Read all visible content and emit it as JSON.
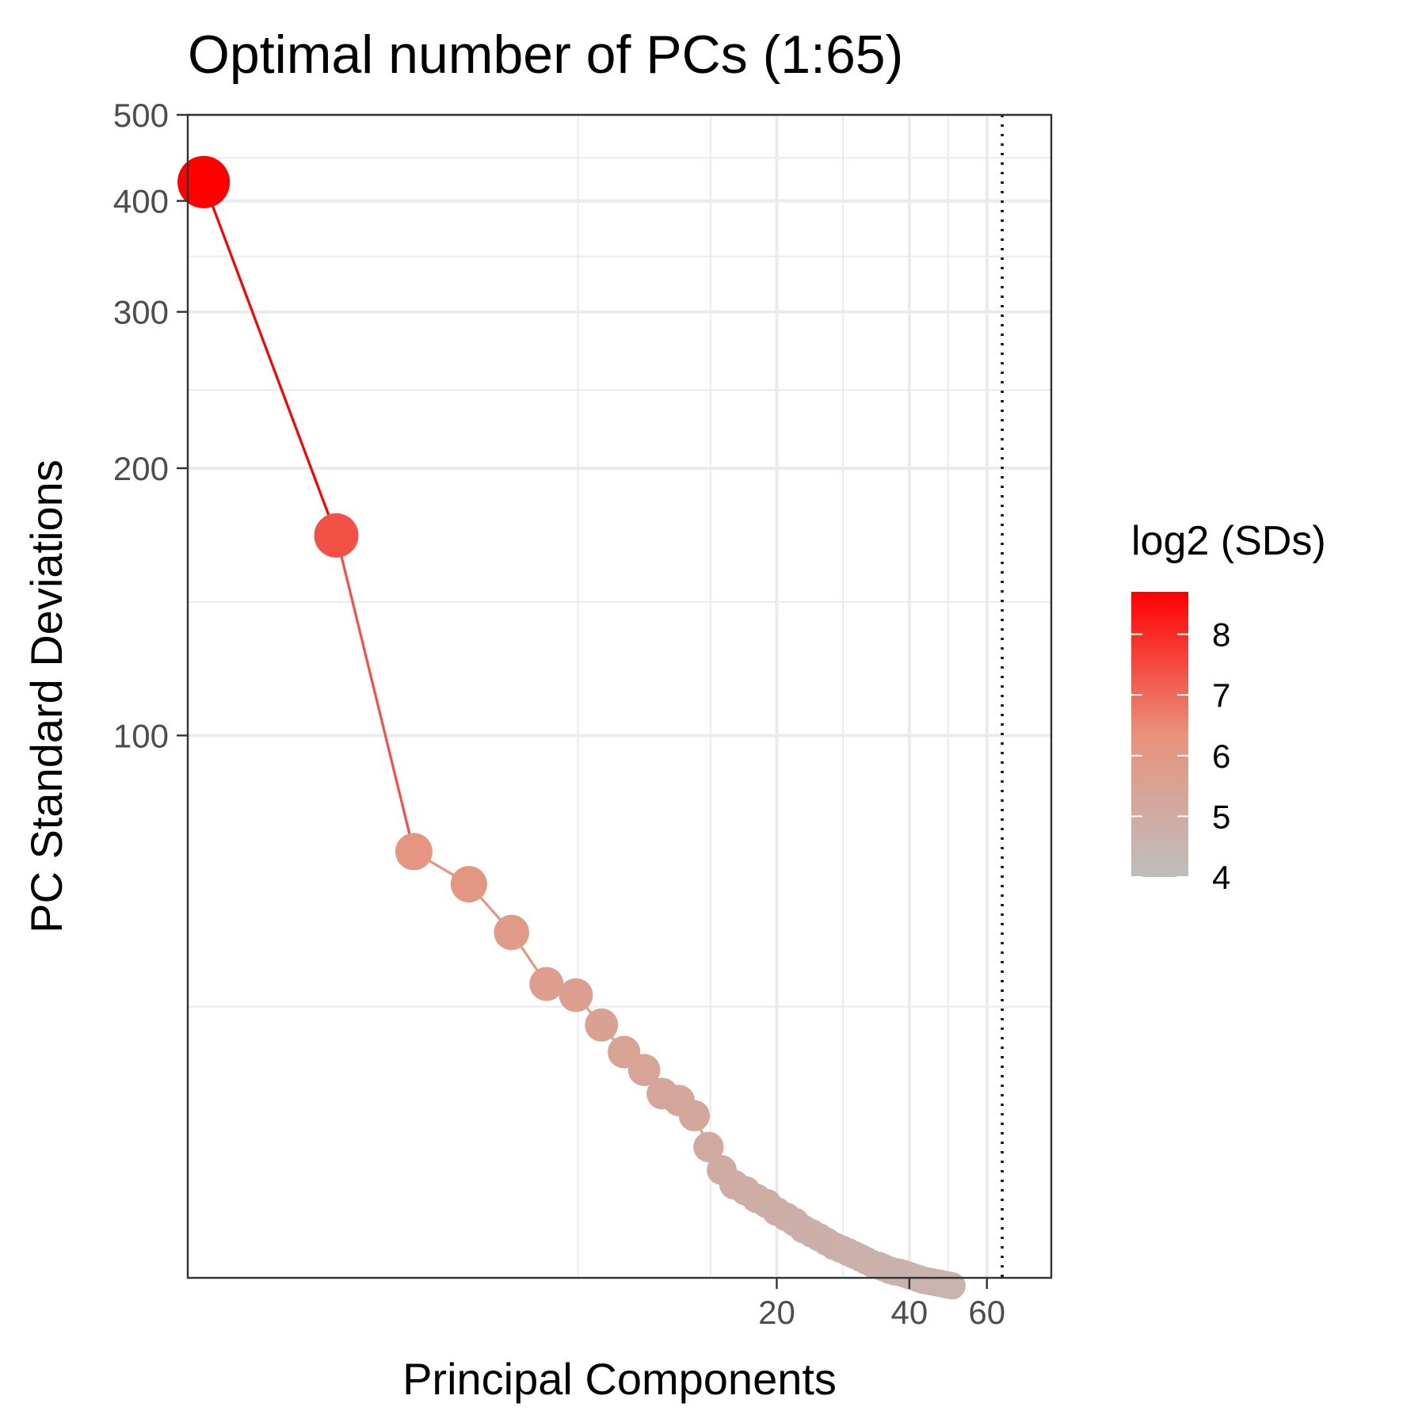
{
  "chart_data": {
    "type": "scatter",
    "title": "Optimal number of PCs (1:65)",
    "xlabel": "Principal Components",
    "ylabel": "PC Standard Deviations",
    "x_scale": "log10",
    "y_scale": "log10",
    "xlim": [
      0.92,
      84
    ],
    "ylim": [
      24.5,
      500
    ],
    "x_ticks": [
      20,
      40,
      60
    ],
    "y_ticks": [
      100,
      200,
      300,
      400,
      500
    ],
    "grid": true,
    "reference_line": {
      "x": 65,
      "style": "dotted"
    },
    "legend": {
      "title": "log2 (SDs)",
      "position": "right",
      "min": 4.0,
      "max": 8.7,
      "ticks": [
        4,
        5,
        6,
        7,
        8
      ],
      "low_color": "#bebebe",
      "mid_color": "#e8927c",
      "high_color": "#ff0000"
    },
    "series": [
      {
        "x": [
          1,
          2,
          3,
          4,
          5,
          6,
          7,
          8,
          9,
          10,
          11,
          12,
          13,
          14,
          15,
          16,
          17,
          18,
          19,
          20,
          21,
          22,
          23,
          24,
          25,
          26,
          27,
          28,
          29,
          30,
          31,
          32,
          33,
          34,
          35,
          36,
          37,
          38,
          39,
          40,
          41,
          42,
          43,
          44,
          45,
          46,
          47,
          48,
          49,
          50
        ],
        "y": [
          420,
          168,
          74,
          68,
          60,
          52.5,
          51,
          47.2,
          44,
          42,
          39.5,
          38.8,
          37.3,
          34.4,
          32.4,
          31.2,
          30.7,
          30.1,
          29.7,
          29.1,
          28.7,
          28.3,
          27.8,
          27.5,
          27.2,
          26.9,
          26.6,
          26.4,
          26.2,
          26.0,
          25.8,
          25.6,
          25.4,
          25.3,
          25.15,
          25.0,
          24.9,
          24.85,
          24.75,
          24.65,
          24.55,
          24.45,
          24.35,
          24.3,
          24.25,
          24.2,
          24.15,
          24.1,
          24.05,
          24.0
        ]
      }
    ]
  }
}
